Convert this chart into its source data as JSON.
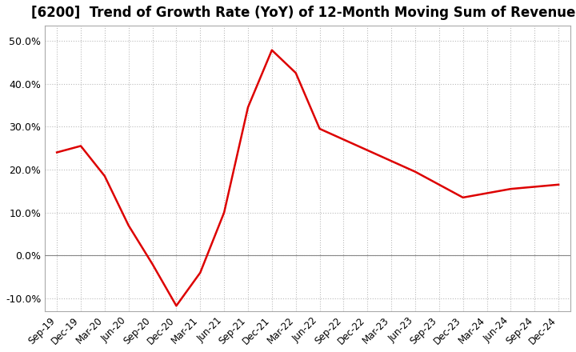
{
  "title": "[6200]  Trend of Growth Rate (YoY) of 12-Month Moving Sum of Revenues",
  "title_fontsize": 12,
  "background_color": "#ffffff",
  "grid_color": "#bbbbbb",
  "line_color": "#dd0000",
  "ylim": [
    -0.13,
    0.535
  ],
  "yticks": [
    -0.1,
    0.0,
    0.1,
    0.2,
    0.3,
    0.4,
    0.5
  ],
  "x_labels": [
    "Sep-19",
    "Dec-19",
    "Mar-20",
    "Jun-20",
    "Sep-20",
    "Dec-20",
    "Mar-21",
    "Jun-21",
    "Sep-21",
    "Dec-21",
    "Mar-22",
    "Jun-22",
    "Sep-22",
    "Dec-22",
    "Mar-23",
    "Jun-23",
    "Sep-23",
    "Dec-23",
    "Mar-24",
    "Jun-24",
    "Sep-24",
    "Dec-24"
  ],
  "values": [
    0.24,
    0.255,
    0.185,
    0.07,
    -0.02,
    -0.117,
    -0.04,
    0.1,
    0.345,
    0.478,
    0.425,
    0.295,
    0.27,
    0.245,
    0.22,
    0.195,
    0.165,
    0.135,
    0.145,
    0.155,
    0.16,
    0.165
  ]
}
